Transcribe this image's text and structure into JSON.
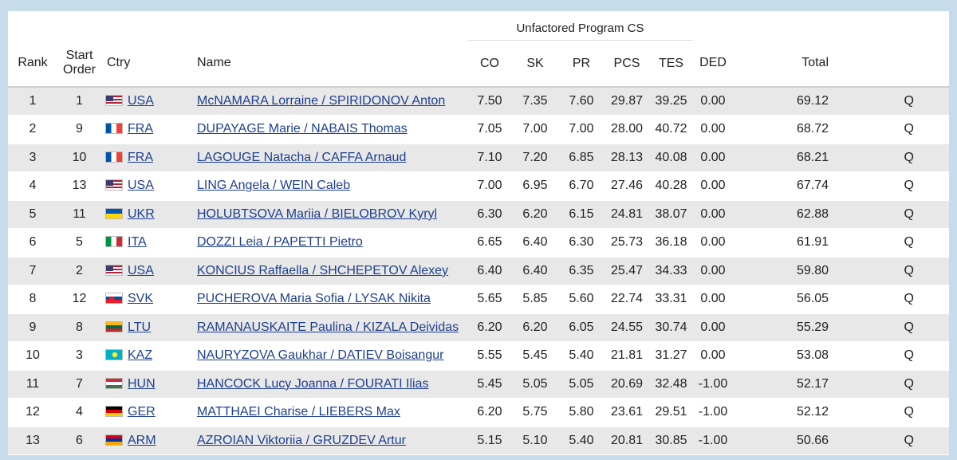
{
  "headers": {
    "group": "Unfactored Program CS",
    "rank": "Rank",
    "start_order_line1": "Start",
    "start_order_line2": "Order",
    "ctry": "Ctry",
    "name": "Name",
    "co": "CO",
    "sk": "SK",
    "pr": "PR",
    "pcs": "PCS",
    "tes": "TES",
    "ded": "DED",
    "total": "Total"
  },
  "rows": [
    {
      "rank": "1",
      "start": "1",
      "ctry": "USA",
      "flag": "fUSA",
      "name": "McNAMARA Lorraine / SPIRIDONOV Anton",
      "co": "7.50",
      "sk": "7.35",
      "pr": "7.60",
      "pcs": "29.87",
      "tes": "39.25",
      "ded": "0.00",
      "total": "69.12",
      "q": "Q"
    },
    {
      "rank": "2",
      "start": "9",
      "ctry": "FRA",
      "flag": "fFRA",
      "name": "DUPAYAGE Marie / NABAIS Thomas",
      "co": "7.05",
      "sk": "7.00",
      "pr": "7.00",
      "pcs": "28.00",
      "tes": "40.72",
      "ded": "0.00",
      "total": "68.72",
      "q": "Q"
    },
    {
      "rank": "3",
      "start": "10",
      "ctry": "FRA",
      "flag": "fFRA",
      "name": "LAGOUGE Natacha / CAFFA Arnaud",
      "co": "7.10",
      "sk": "7.20",
      "pr": "6.85",
      "pcs": "28.13",
      "tes": "40.08",
      "ded": "0.00",
      "total": "68.21",
      "q": "Q"
    },
    {
      "rank": "4",
      "start": "13",
      "ctry": "USA",
      "flag": "fUSA",
      "name": "LING Angela / WEIN Caleb",
      "co": "7.00",
      "sk": "6.95",
      "pr": "6.70",
      "pcs": "27.46",
      "tes": "40.28",
      "ded": "0.00",
      "total": "67.74",
      "q": "Q"
    },
    {
      "rank": "5",
      "start": "11",
      "ctry": "UKR",
      "flag": "fUKR",
      "name": "HOLUBTSOVA Mariia / BIELOBROV Kyryl",
      "co": "6.30",
      "sk": "6.20",
      "pr": "6.15",
      "pcs": "24.81",
      "tes": "38.07",
      "ded": "0.00",
      "total": "62.88",
      "q": "Q"
    },
    {
      "rank": "6",
      "start": "5",
      "ctry": "ITA",
      "flag": "fITA",
      "name": "DOZZI Leia / PAPETTI Pietro",
      "co": "6.65",
      "sk": "6.40",
      "pr": "6.30",
      "pcs": "25.73",
      "tes": "36.18",
      "ded": "0.00",
      "total": "61.91",
      "q": "Q"
    },
    {
      "rank": "7",
      "start": "2",
      "ctry": "USA",
      "flag": "fUSA",
      "name": "KONCIUS Raffaella / SHCHEPETOV Alexey",
      "co": "6.40",
      "sk": "6.40",
      "pr": "6.35",
      "pcs": "25.47",
      "tes": "34.33",
      "ded": "0.00",
      "total": "59.80",
      "q": "Q"
    },
    {
      "rank": "8",
      "start": "12",
      "ctry": "SVK",
      "flag": "fSVK",
      "name": "PUCHEROVA Maria Sofia / LYSAK Nikita",
      "co": "5.65",
      "sk": "5.85",
      "pr": "5.60",
      "pcs": "22.74",
      "tes": "33.31",
      "ded": "0.00",
      "total": "56.05",
      "q": "Q"
    },
    {
      "rank": "9",
      "start": "8",
      "ctry": "LTU",
      "flag": "fLTU",
      "name": "RAMANAUSKAITE Paulina / KIZALA Deividas",
      "co": "6.20",
      "sk": "6.20",
      "pr": "6.05",
      "pcs": "24.55",
      "tes": "30.74",
      "ded": "0.00",
      "total": "55.29",
      "q": "Q"
    },
    {
      "rank": "10",
      "start": "3",
      "ctry": "KAZ",
      "flag": "fKAZ",
      "name": "NAURYZOVA Gaukhar / DATIEV Boisangur",
      "co": "5.55",
      "sk": "5.45",
      "pr": "5.40",
      "pcs": "21.81",
      "tes": "31.27",
      "ded": "0.00",
      "total": "53.08",
      "q": "Q"
    },
    {
      "rank": "11",
      "start": "7",
      "ctry": "HUN",
      "flag": "fHUN",
      "name": "HANCOCK Lucy Joanna / FOURATI Ilias",
      "co": "5.45",
      "sk": "5.05",
      "pr": "5.05",
      "pcs": "20.69",
      "tes": "32.48",
      "ded": "-1.00",
      "total": "52.17",
      "q": "Q"
    },
    {
      "rank": "12",
      "start": "4",
      "ctry": "GER",
      "flag": "fGER",
      "name": "MATTHAEI Charise / LIEBERS Max",
      "co": "6.20",
      "sk": "5.75",
      "pr": "5.80",
      "pcs": "23.61",
      "tes": "29.51",
      "ded": "-1.00",
      "total": "52.12",
      "q": "Q"
    },
    {
      "rank": "13",
      "start": "6",
      "ctry": "ARM",
      "flag": "fARM",
      "name": "AZROIAN Viktoriia / GRUZDEV Artur",
      "co": "5.15",
      "sk": "5.10",
      "pr": "5.40",
      "pcs": "20.81",
      "tes": "30.85",
      "ded": "-1.00",
      "total": "50.66",
      "q": "Q"
    }
  ]
}
